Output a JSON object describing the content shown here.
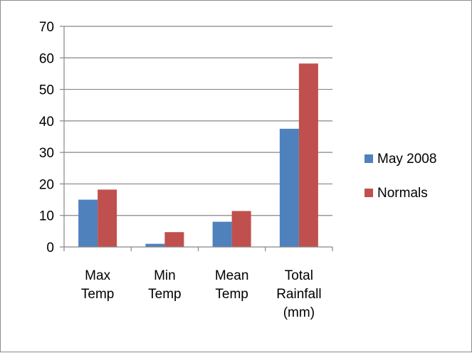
{
  "chart_data": {
    "type": "bar",
    "title": "",
    "xlabel": "",
    "ylabel": "",
    "categories": [
      [
        "Max",
        "Temp"
      ],
      [
        "Min",
        "Temp"
      ],
      [
        "Mean",
        "Temp"
      ],
      [
        "Total",
        "Rainfall",
        "(mm)"
      ]
    ],
    "series": [
      {
        "name": "May 2008",
        "color": "#4f81bd",
        "values": [
          15,
          1,
          8,
          37.5
        ]
      },
      {
        "name": "Normals",
        "color": "#c0504d",
        "values": [
          18.2,
          4.7,
          11.4,
          58.2
        ]
      }
    ],
    "ylim": [
      0,
      70
    ],
    "yticks": [
      0,
      10,
      20,
      30,
      40,
      50,
      60,
      70
    ],
    "grid": true,
    "legend": "right"
  }
}
